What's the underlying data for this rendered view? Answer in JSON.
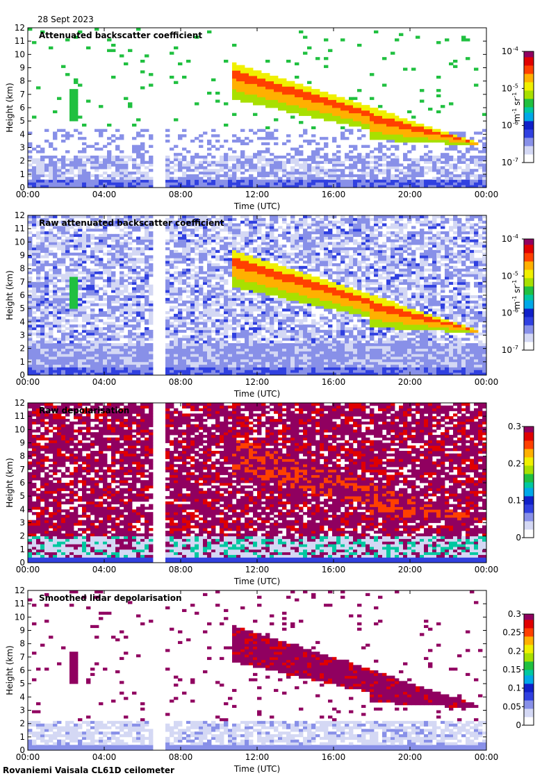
{
  "page": {
    "date": "28 Sept 2023",
    "footer": "Rovaniemi Vaisala CL61D ceilometer"
  },
  "colors": {
    "colormap": [
      "#ffffff",
      "#d4d8f4",
      "#8890e8",
      "#3040e0",
      "#1020c8",
      "#00a8e8",
      "#00c8a0",
      "#20c040",
      "#a8e000",
      "#f0f000",
      "#ffb000",
      "#ff4000",
      "#e00000",
      "#900060"
    ]
  },
  "chart_data": [
    {
      "type": "heatmap",
      "title": "Attenuated backscatter coefficient",
      "xlabel": "Time (UTC)",
      "ylabel": "Height (km)",
      "x_ticks": [
        "00:00",
        "04:00",
        "08:00",
        "12:00",
        "16:00",
        "20:00",
        "00:00"
      ],
      "y_ticks": [
        "0",
        "1",
        "2",
        "3",
        "4",
        "5",
        "6",
        "7",
        "8",
        "9",
        "10",
        "11",
        "12"
      ],
      "ylim": [
        0,
        12
      ],
      "colorbar": {
        "scale": "log",
        "ticks": [
          "10",
          "10",
          "10",
          "10"
        ],
        "exponents": [
          "-7",
          "-6",
          "-5",
          "-4"
        ],
        "unit_parts": [
          "m",
          "-1",
          " sr",
          "-1"
        ]
      },
      "style": "backscatter"
    },
    {
      "type": "heatmap",
      "title": "Raw attenuated backscatter coefficient",
      "xlabel": "Time (UTC)",
      "ylabel": "Height (km)",
      "x_ticks": [
        "00:00",
        "04:00",
        "08:00",
        "12:00",
        "16:00",
        "20:00",
        "00:00"
      ],
      "y_ticks": [
        "0",
        "1",
        "2",
        "3",
        "4",
        "5",
        "6",
        "7",
        "8",
        "9",
        "10",
        "11",
        "12"
      ],
      "ylim": [
        0,
        12
      ],
      "colorbar": {
        "scale": "log",
        "ticks": [
          "10",
          "10",
          "10",
          "10"
        ],
        "exponents": [
          "-7",
          "-6",
          "-5",
          "-4"
        ],
        "unit_parts": [
          "m",
          "-1",
          " sr",
          "-1"
        ]
      },
      "style": "raw_backscatter"
    },
    {
      "type": "heatmap",
      "title": "Raw depolarisation",
      "xlabel": "Time (UTC)",
      "ylabel": "Height (km)",
      "x_ticks": [
        "00:00",
        "04:00",
        "08:00",
        "12:00",
        "16:00",
        "20:00",
        "00:00"
      ],
      "y_ticks": [
        "0",
        "1",
        "2",
        "3",
        "4",
        "5",
        "6",
        "7",
        "8",
        "9",
        "10",
        "11",
        "12"
      ],
      "ylim": [
        0,
        12
      ],
      "colorbar": {
        "scale": "linear",
        "ticks": [
          "0",
          "0.1",
          "0.2",
          "0.3"
        ]
      },
      "style": "raw_depol"
    },
    {
      "type": "heatmap",
      "title": "Smoothed lidar depolarisation",
      "xlabel": "Time (UTC)",
      "ylabel": "Height (km)",
      "x_ticks": [
        "00:00",
        "04:00",
        "08:00",
        "12:00",
        "16:00",
        "20:00",
        "00:00"
      ],
      "y_ticks": [
        "0",
        "1",
        "2",
        "3",
        "4",
        "5",
        "6",
        "7",
        "8",
        "9",
        "10",
        "11",
        "12"
      ],
      "ylim": [
        0,
        12
      ],
      "colorbar": {
        "scale": "linear",
        "ticks": [
          "0",
          "0.05",
          "0.1",
          "0.15",
          "0.2",
          "0.25",
          "0.3"
        ]
      },
      "style": "smooth_depol"
    }
  ]
}
